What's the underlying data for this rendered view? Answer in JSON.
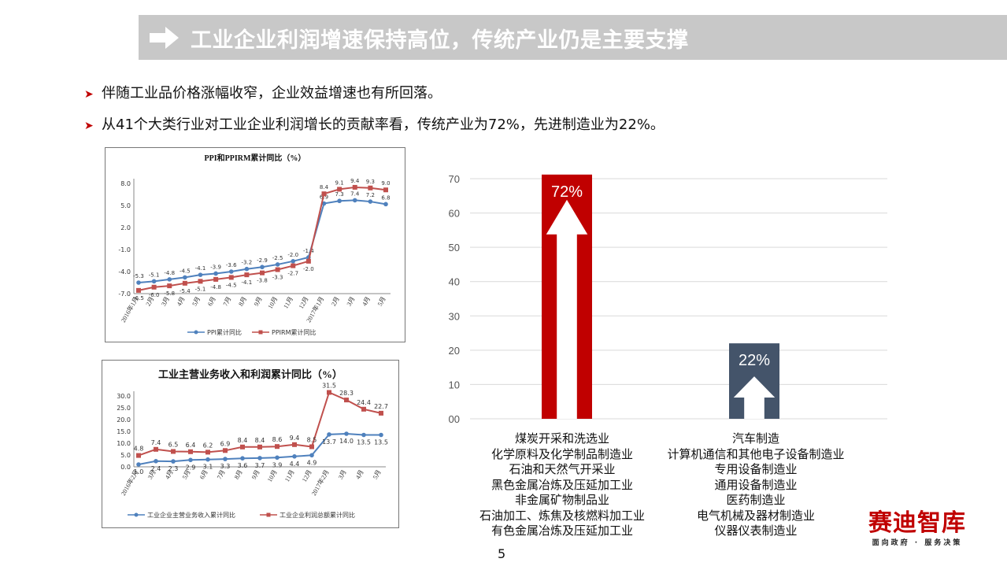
{
  "slide": {
    "title": "工业企业利润增速保持高位，传统产业仍是主要支撑",
    "bullets": [
      "伴随工业品价格涨幅收窄，企业效益增速也有所回落。",
      "从41个大类行业对工业企业利润增长的贡献率看，传统产业为72%，先进制造业为22%。"
    ],
    "page_number": "5",
    "logo": {
      "name": "赛迪智库",
      "slogan": "面向政府 · 服务决策"
    },
    "colors": {
      "title_bg": "#c8c8c8",
      "accent_red": "#c00000",
      "navy": "#44546a",
      "ppi_blue": "#4f81bd",
      "ppirm_red": "#c0504d"
    }
  },
  "chart_data": [
    {
      "type": "line",
      "title": "PPI和PPIRM累计同比（%）",
      "x": [
        "2016年1月",
        "2月",
        "3月",
        "4月",
        "5月",
        "6月",
        "7月",
        "8月",
        "9月",
        "10月",
        "11月",
        "12月",
        "2017年1月",
        "2月",
        "3月",
        "4月",
        "5月"
      ],
      "ylim": [
        -7.0,
        10.0
      ],
      "yticks": [
        "8.0",
        "5.0",
        "2.0",
        "-1.0",
        "-4.0",
        "-7.0"
      ],
      "series": [
        {
          "name": "PPI累计同比",
          "color": "#4f81bd",
          "values": [
            -5.3,
            -5.1,
            -4.8,
            -4.5,
            -4.1,
            -3.9,
            -3.6,
            -3.2,
            -2.9,
            -2.5,
            -2.0,
            -1.4,
            6.9,
            7.3,
            7.4,
            7.2,
            6.8
          ],
          "labels": [
            "-5.3",
            "-5.1",
            "-4.8",
            "-4.5",
            "-4.1",
            "-3.9",
            "-3.6",
            "-3.2",
            "-2.9",
            "-2.5",
            "-2.0",
            "-1.4",
            "6.9",
            "7.3",
            "7.4",
            "7.2",
            "6.8"
          ]
        },
        {
          "name": "PPIRM累计同比",
          "color": "#c0504d",
          "values": [
            -6.5,
            -6.0,
            -5.8,
            -5.4,
            -5.1,
            -4.8,
            -4.5,
            -4.1,
            -3.8,
            -3.3,
            -2.7,
            -2.0,
            8.4,
            9.1,
            9.4,
            9.3,
            9.0
          ],
          "labels": [
            "-6.5",
            "-6.0",
            "-5.8",
            "-5.4",
            "-5.1",
            "-4.8",
            "-4.5",
            "-4.1",
            "-3.8",
            "-3.3",
            "-2.7",
            "-2.0",
            "8.4",
            "9.1",
            "9.4",
            "9.3",
            "9.0"
          ]
        }
      ]
    },
    {
      "type": "line",
      "title": "工业主营业务收入和利润累计同比（%）",
      "x": [
        "2016年2月",
        "3月",
        "4月",
        "5月",
        "6月",
        "7月",
        "8月",
        "9月",
        "10月",
        "11月",
        "12月",
        "2017年2月",
        "3月",
        "4月",
        "5月"
      ],
      "ylim": [
        0,
        30.0
      ],
      "yticks": [
        "30.0",
        "25.0",
        "20.0",
        "15.0",
        "10.0",
        "5.0",
        "0.0"
      ],
      "series": [
        {
          "name": "工业企业主营业务收入累计同比",
          "color": "#4f81bd",
          "values": [
            1.0,
            2.4,
            2.3,
            2.9,
            3.1,
            3.3,
            3.6,
            3.7,
            3.9,
            4.4,
            4.9,
            13.7,
            14.0,
            13.5,
            13.5
          ],
          "labels": [
            "1.0",
            "2.4",
            "2.3",
            "2.9",
            "3.1",
            "3.3",
            "3.6",
            "3.7",
            "3.9",
            "4.4",
            "4.9",
            "13.7",
            "14.0",
            "13.5",
            "13.5"
          ]
        },
        {
          "name": "工业企业利润总额累计同比",
          "color": "#c0504d",
          "values": [
            4.8,
            7.4,
            6.5,
            6.4,
            6.2,
            6.9,
            8.4,
            8.4,
            8.6,
            9.4,
            8.5,
            31.5,
            28.3,
            24.4,
            22.7
          ],
          "labels": [
            "4.8",
            "7.4",
            "6.5",
            "6.4",
            "6.2",
            "6.9",
            "8.4",
            "8.4",
            "8.6",
            "9.4",
            "8.5",
            "31.5",
            "28.3",
            "24.4",
            "22.7"
          ]
        }
      ]
    },
    {
      "type": "bar",
      "categories": [
        "传统产业",
        "先进制造业"
      ],
      "values": [
        72,
        22
      ],
      "value_labels": [
        "72%",
        "22%"
      ],
      "colors": [
        "#c00000",
        "#44546a"
      ],
      "ylim": [
        0,
        70
      ],
      "yticks": [
        "70",
        "60",
        "50",
        "40",
        "30",
        "20",
        "10",
        "00"
      ],
      "grid": true,
      "category_items": [
        [
          "煤炭开采和洗选业",
          "化学原料及化学制品制造业",
          "石油和天然气开采业",
          "黑色金属冶炼及压延加工业",
          "非金属矿物制品业",
          "石油加工、炼焦及核燃料加工业",
          "有色金属冶炼及压延加工业"
        ],
        [
          "汽车制造",
          "计算机通信和其他电子设备制造业",
          "专用设备制造业",
          "通用设备制造业",
          "医药制造业",
          "电气机械及器材制造业",
          "仪器仪表制造业"
        ]
      ]
    }
  ]
}
